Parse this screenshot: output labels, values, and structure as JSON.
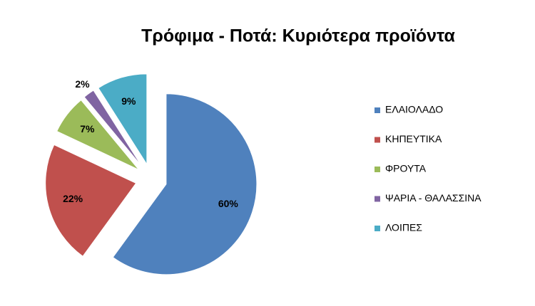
{
  "chart_data": {
    "type": "pie",
    "title": "Τρόφιμα - Ποτά: Κυριότερα προϊόντα",
    "categories": [
      "ΕΛΑΙΟΛΑΔΟ",
      "ΚΗΠΕΥΤΙΚΑ",
      "ΦΡΟΥΤΑ",
      "ΨΑΡΙΑ - ΘΑΛΑΣΣΙΝΑ",
      "ΛΟΙΠΕΣ"
    ],
    "values": [
      60,
      22,
      7,
      2,
      9
    ],
    "value_labels": [
      "60%",
      "22%",
      "7%",
      "2%",
      "9%"
    ],
    "colors": [
      "#4f81bd",
      "#c0504d",
      "#9bbb59",
      "#8064a2",
      "#4bacc6"
    ],
    "legend": "right"
  }
}
